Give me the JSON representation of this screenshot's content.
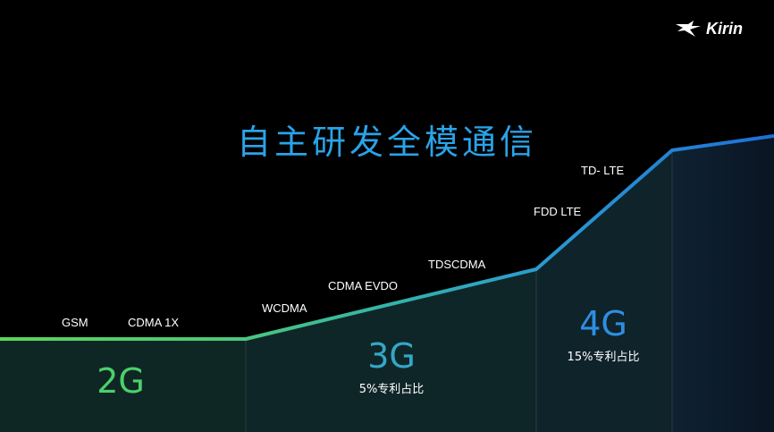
{
  "title": "自主研发全模通信",
  "logo": {
    "text": "Kirin",
    "icon": "kirin-bird-icon"
  },
  "colors": {
    "background": "#000000",
    "title": "#2aa3e8",
    "gen_2g": "#4bd16a",
    "gen_3g": "#35a7c7",
    "gen_4g": "#2e8fe0",
    "line_start": "#5ad65a",
    "line_end": "#1e7fe0"
  },
  "generations": [
    {
      "name": "2G",
      "share": ""
    },
    {
      "name": "3G",
      "share": "5%专利占比"
    },
    {
      "name": "4G",
      "share": "15%专利占比"
    }
  ],
  "standards": {
    "gsm": "GSM",
    "cdma1x": "CDMA 1X",
    "wcdma": "WCDMA",
    "cdma_evdo": "CDMA EVDO",
    "tdscdma": "TDSCDMA",
    "fdd_lte": "FDD LTE",
    "td_lte": "TD- LTE"
  }
}
